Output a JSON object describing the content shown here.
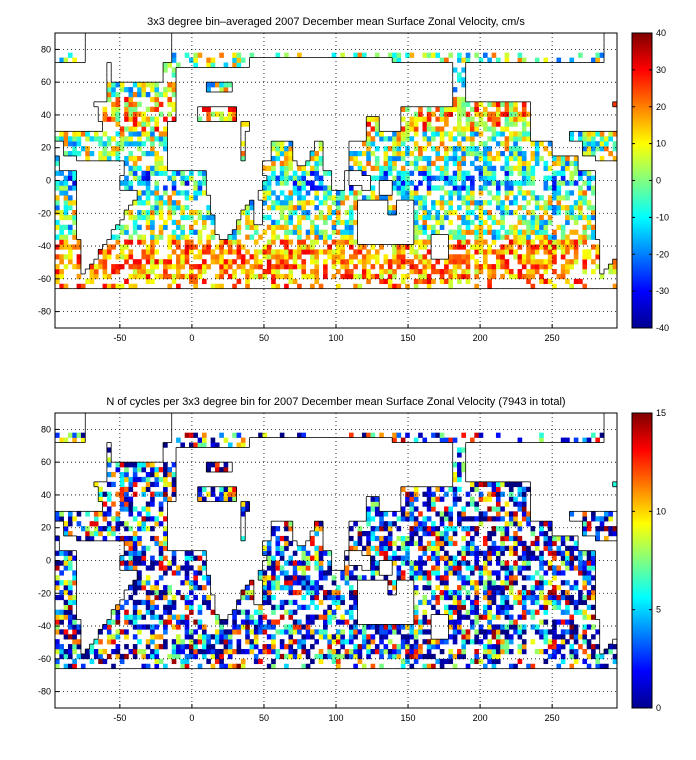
{
  "chart_data": [
    {
      "type": "heatmap",
      "title": "3x3 degree bin–averaged 2007 December mean Surface Zonal Velocity, cm/s",
      "xlim": [
        -95,
        295
      ],
      "ylim": [
        -90,
        90
      ],
      "xticks": [
        "-50",
        "0",
        "50",
        "100",
        "150",
        "200",
        "250"
      ],
      "xtick_values": [
        -50,
        0,
        50,
        100,
        150,
        200,
        250
      ],
      "yticks": [
        "80",
        "60",
        "40",
        "20",
        "0",
        "-20",
        "-40",
        "-60",
        "-80"
      ],
      "ytick_values": [
        80,
        60,
        40,
        20,
        0,
        -20,
        -40,
        -60,
        -80
      ],
      "colorbar": {
        "min": -40,
        "max": 40,
        "ticks": [
          "40",
          "30",
          "20",
          "10",
          "0",
          "-10",
          "-20",
          "-30",
          "-40"
        ],
        "tick_values": [
          40,
          30,
          20,
          10,
          0,
          -10,
          -20,
          -30,
          -40
        ],
        "colormap": "jet"
      },
      "grid": true,
      "bin_deg": 3
    },
    {
      "type": "heatmap",
      "title": "N of cycles per 3x3 degree bin for 2007 December mean Surface Zonal Velocity (7943 in total)",
      "xlim": [
        -95,
        295
      ],
      "ylim": [
        -90,
        90
      ],
      "xticks": [
        "-50",
        "0",
        "50",
        "100",
        "150",
        "200",
        "250"
      ],
      "xtick_values": [
        -50,
        0,
        50,
        100,
        150,
        200,
        250
      ],
      "yticks": [
        "80",
        "60",
        "40",
        "20",
        "0",
        "-20",
        "-40",
        "-60",
        "-80"
      ],
      "ytick_values": [
        80,
        60,
        40,
        20,
        0,
        -20,
        -40,
        -60,
        -80
      ],
      "colorbar": {
        "min": 0,
        "max": 15,
        "ticks": [
          "15",
          "10",
          "5",
          "0"
        ],
        "tick_values": [
          15,
          10,
          5,
          0
        ],
        "colormap": "jet"
      },
      "grid": true,
      "bin_deg": 3
    }
  ]
}
